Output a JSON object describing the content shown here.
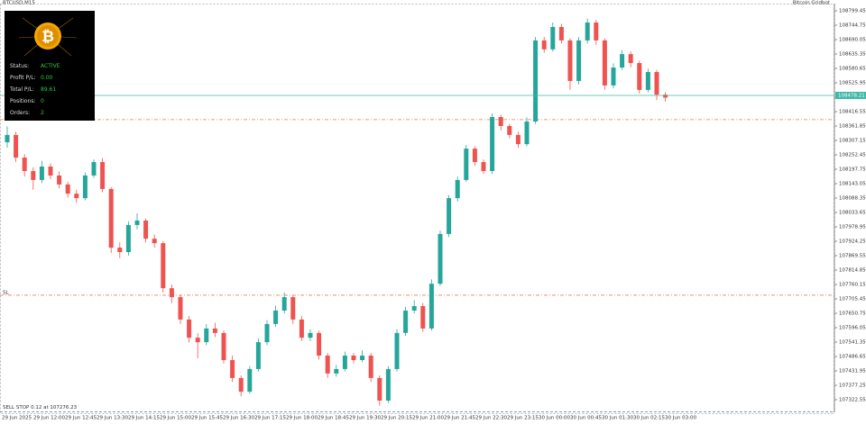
{
  "header": "BTCUSD,M15",
  "brand": "Bitcoin Gridbot",
  "panel": {
    "rows": [
      {
        "label": "Status:",
        "value": "ACTIVE"
      },
      {
        "label": "Profit P/L:",
        "value": "0.00"
      },
      {
        "label": "Total P/L:",
        "value": "89.61"
      },
      {
        "label": "Positions:",
        "value": "0"
      },
      {
        "label": "Orders:",
        "value": "2"
      }
    ]
  },
  "chart_data": {
    "type": "candlestick",
    "colors": {
      "up": "#26a69a",
      "down": "#ef5350"
    },
    "ylim": [
      107274.7,
      108826.8
    ],
    "yticks": [
      107322.55,
      107377.25,
      107431.95,
      107486.65,
      107541.35,
      107596.05,
      107650.75,
      107705.45,
      107760.15,
      107814.85,
      107869.55,
      107924.25,
      107978.95,
      108033.65,
      108088.35,
      108143.05,
      108197.75,
      108252.45,
      108307.15,
      108361.85,
      108416.55,
      108471.25,
      108525.95,
      108580.65,
      108635.35,
      108690.05,
      108744.75,
      108799.45
    ],
    "time_labels": [
      "29 Jun 2025",
      "29 Jun 12:00",
      "29 Jun 12:45",
      "29 Jun 13:30",
      "29 Jun 14:15",
      "29 Jun 15:00",
      "29 Jun 15:45",
      "29 Jun 16:30",
      "29 Jun 17:15",
      "29 Jun 18:00",
      "29 Jun 18:45",
      "29 Jun 19:30",
      "29 Jun 20:15",
      "29 Jun 21:00",
      "29 Jun 21:45",
      "29 Jun 22:30",
      "29 Jun 23:15",
      "30 Jun 00:00",
      "30 Jun 00:45",
      "30 Jun 01:30",
      "30 Jun 02:15",
      "30 Jun 03:00"
    ],
    "ohlc": [
      [
        108300,
        108360,
        108280,
        108328
      ],
      [
        108328,
        108340,
        108225,
        108242
      ],
      [
        108242,
        108255,
        108170,
        108191
      ],
      [
        108191,
        108205,
        108120,
        108157
      ],
      [
        108157,
        108230,
        108145,
        108208
      ],
      [
        108208,
        108220,
        108160,
        108174
      ],
      [
        108174,
        108190,
        108125,
        108140
      ],
      [
        108140,
        108150,
        108090,
        108105
      ],
      [
        108105,
        108120,
        108070,
        108088
      ],
      [
        108088,
        108185,
        108080,
        108174
      ],
      [
        108174,
        108235,
        108165,
        108225
      ],
      [
        108225,
        108240,
        108110,
        108123
      ],
      [
        108123,
        108130,
        107880,
        107900
      ],
      [
        107900,
        107920,
        107860,
        107883
      ],
      [
        107883,
        108000,
        107870,
        107986
      ],
      [
        107986,
        108030,
        107970,
        108003
      ],
      [
        108003,
        108010,
        107920,
        107934
      ],
      [
        107934,
        107950,
        107900,
        107917
      ],
      [
        107917,
        107925,
        107730,
        107746
      ],
      [
        107746,
        107760,
        107690,
        107712
      ],
      [
        107712,
        107720,
        107610,
        107627
      ],
      [
        107627,
        107640,
        107540,
        107558
      ],
      [
        107558,
        107575,
        107480,
        107541
      ],
      [
        107541,
        107610,
        107530,
        107593
      ],
      [
        107593,
        107615,
        107560,
        107576
      ],
      [
        107576,
        107585,
        107460,
        107473
      ],
      [
        107473,
        107490,
        107390,
        107405
      ],
      [
        107405,
        107415,
        107335,
        107353
      ],
      [
        107353,
        107450,
        107345,
        107439
      ],
      [
        107439,
        107555,
        107430,
        107541
      ],
      [
        107541,
        107625,
        107530,
        107610
      ],
      [
        107610,
        107680,
        107600,
        107661
      ],
      [
        107661,
        107730,
        107650,
        107712
      ],
      [
        107712,
        107720,
        107610,
        107627
      ],
      [
        107627,
        107640,
        107545,
        107558
      ],
      [
        107558,
        107590,
        107545,
        107576
      ],
      [
        107576,
        107585,
        107475,
        107490
      ],
      [
        107490,
        107500,
        107405,
        107422
      ],
      [
        107422,
        107455,
        107410,
        107439
      ],
      [
        107439,
        107505,
        107430,
        107490
      ],
      [
        107490,
        107500,
        107460,
        107473
      ],
      [
        107473,
        107510,
        107465,
        107490
      ],
      [
        107490,
        107500,
        107390,
        107405
      ],
      [
        107405,
        107415,
        107300,
        107319
      ],
      [
        107319,
        107450,
        107310,
        107439
      ],
      [
        107439,
        107590,
        107430,
        107576
      ],
      [
        107576,
        107675,
        107565,
        107661
      ],
      [
        107661,
        107700,
        107650,
        107678
      ],
      [
        107678,
        107690,
        107580,
        107593
      ],
      [
        107593,
        107780,
        107585,
        107763
      ],
      [
        107763,
        107965,
        107755,
        107952
      ],
      [
        107952,
        108100,
        107940,
        108088
      ],
      [
        108088,
        108170,
        108075,
        108157
      ],
      [
        108157,
        108290,
        108150,
        108276
      ],
      [
        108276,
        108285,
        108210,
        108225
      ],
      [
        108225,
        108235,
        108180,
        108191
      ],
      [
        108191,
        108410,
        108180,
        108396
      ],
      [
        108396,
        108405,
        108345,
        108362
      ],
      [
        108362,
        108370,
        108315,
        108328
      ],
      [
        108328,
        108340,
        108280,
        108293
      ],
      [
        108293,
        108395,
        108285,
        108379
      ],
      [
        108379,
        108700,
        108370,
        108687
      ],
      [
        108687,
        108700,
        108640,
        108653
      ],
      [
        108653,
        108755,
        108645,
        108738
      ],
      [
        108738,
        108750,
        108675,
        108687
      ],
      [
        108687,
        108695,
        108500,
        108533
      ],
      [
        108533,
        108700,
        108520,
        108687
      ],
      [
        108687,
        108770,
        108675,
        108755
      ],
      [
        108755,
        108765,
        108670,
        108687
      ],
      [
        108687,
        108695,
        108500,
        108516
      ],
      [
        108516,
        108600,
        108505,
        108584
      ],
      [
        108584,
        108650,
        108575,
        108635
      ],
      [
        108635,
        108645,
        108585,
        108601
      ],
      [
        108601,
        108610,
        108485,
        108499
      ],
      [
        108499,
        108580,
        108490,
        108567
      ],
      [
        108567,
        108575,
        108460,
        108481
      ],
      [
        108481,
        108490,
        108455,
        108470
      ]
    ],
    "price_line": {
      "value": 108478.21,
      "color": "#3fb8a8"
    },
    "levels": [
      {
        "value": 108386.2,
        "color": "#e8824a"
      },
      {
        "name": "SL",
        "value": 107719.4,
        "color": "#e8824a"
      }
    ],
    "order_line": {
      "label": "SELL STOP 0.12 at 107276.23",
      "value": 107276.23,
      "color": "#6a8fb0"
    }
  }
}
